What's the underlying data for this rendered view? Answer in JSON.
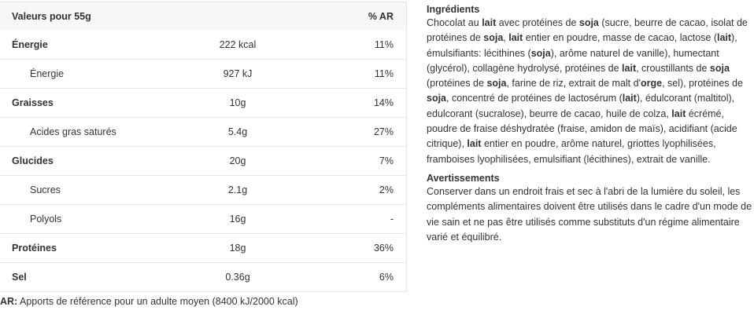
{
  "table": {
    "header": {
      "label": "Valeurs pour 55g",
      "ar": "% AR"
    },
    "rows": [
      {
        "label": "Énergie",
        "value": "222 kcal",
        "ar": "11%",
        "type": "main"
      },
      {
        "label": "Énergie",
        "value": "927 kJ",
        "ar": "11%",
        "type": "sub"
      },
      {
        "label": "Graisses",
        "value": "10g",
        "ar": "14%",
        "type": "main"
      },
      {
        "label": "Acides gras saturés",
        "value": "5.4g",
        "ar": "27%",
        "type": "sub"
      },
      {
        "label": "Glucides",
        "value": "20g",
        "ar": "7%",
        "type": "main"
      },
      {
        "label": "Sucres",
        "value": "2.1g",
        "ar": "2%",
        "type": "sub"
      },
      {
        "label": "Polyols",
        "value": "16g",
        "ar": "-",
        "type": "sub"
      },
      {
        "label": "Protéines",
        "value": "18g",
        "ar": "36%",
        "type": "main"
      },
      {
        "label": "Sel",
        "value": "0.36g",
        "ar": "6%",
        "type": "main"
      }
    ]
  },
  "footnote": {
    "abbr": "AR:",
    "text": " Apports de référence pour un adulte moyen (8400 kJ/2000 kcal)"
  },
  "ingredients": {
    "title": "Ingrédients",
    "segments": [
      {
        "t": "Chocolat au "
      },
      {
        "t": "lait",
        "b": true
      },
      {
        "t": " avec protéines de "
      },
      {
        "t": "soja",
        "b": true
      },
      {
        "t": " (sucre, beurre de cacao, isolat de protéines de "
      },
      {
        "t": "soja",
        "b": true
      },
      {
        "t": ", "
      },
      {
        "t": "lait",
        "b": true
      },
      {
        "t": " entier en poudre, masse de cacao, lactose ("
      },
      {
        "t": "lait",
        "b": true
      },
      {
        "t": "), émulsifiants: lécithines ("
      },
      {
        "t": "soja",
        "b": true
      },
      {
        "t": "), arôme naturel de vanille), humectant (glycérol), collagène hydrolysé, protéines de "
      },
      {
        "t": "lait",
        "b": true
      },
      {
        "t": ", croustillants de "
      },
      {
        "t": "soja",
        "b": true
      },
      {
        "t": " (protéines de "
      },
      {
        "t": "soja",
        "b": true
      },
      {
        "t": ", farine de riz, extrait de malt d'"
      },
      {
        "t": "orge",
        "b": true
      },
      {
        "t": ", sel), protéines de "
      },
      {
        "t": "soja",
        "b": true
      },
      {
        "t": ", concentré de protéines de lactosérum ("
      },
      {
        "t": "lait",
        "b": true
      },
      {
        "t": "), édulcorant (maltitol), edulcorant (sucralose), beurre de cacao, huile de colza, "
      },
      {
        "t": "lait",
        "b": true
      },
      {
        "t": " écrémé, poudre de fraise déshydratée (fraise, amidon de maïs), acidifiant (acide citrique), "
      },
      {
        "t": "lait",
        "b": true
      },
      {
        "t": " entier en poudre, arôme naturel, griottes lyophilisées, framboises lyophilisées, emulsifiant (lécithines), extrait de vanille."
      }
    ]
  },
  "warnings": {
    "title": "Avertissements",
    "text": "Conserver dans un endroit frais et sec à l'abri de la lumière du soleil, les compléments alimentaires doivent être utilisés dans le cadre d'un mode de vie sain et ne pas être utilisés comme substituts d'un régime alimentaire varié et équilibré."
  }
}
